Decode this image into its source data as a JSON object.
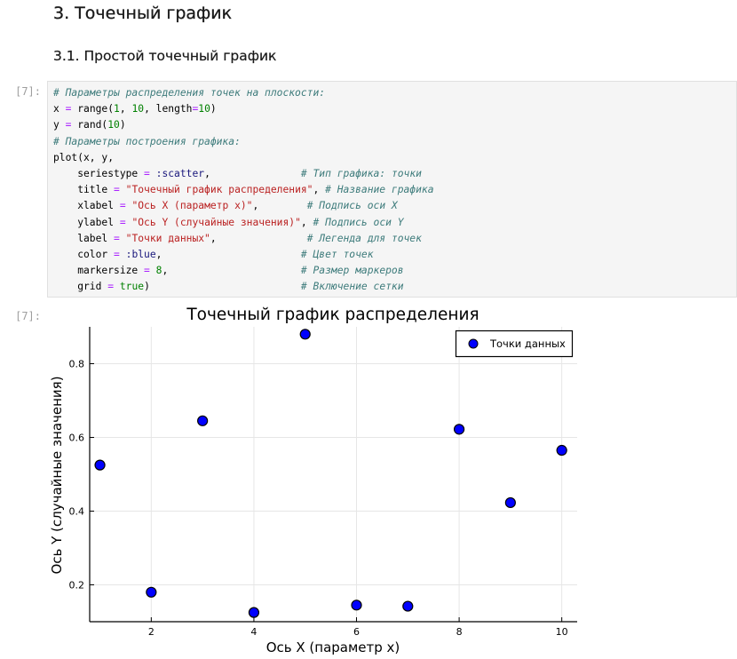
{
  "notebook": {
    "section_heading": "3. Точечный график",
    "subsection_heading": "3.1. Простой точечный график",
    "input_prompt": "[7]:",
    "output_prompt": "[7]:",
    "code_lines": [
      "# Параметры распределения точек на плоскости:",
      "x = range(1, 10, length=10)",
      "y = rand(10)",
      "# Параметры построения графика:",
      "plot(x, y,",
      "    seriestype = :scatter,               # Тип графика: точки",
      "    title = \"Точечный график распределения\", # Название графика",
      "    xlabel = \"Ось X (параметр x)\",        # Подпись оси X",
      "    ylabel = \"Ось Y (случайные значения)\", # Подпись оси Y",
      "    label = \"Точки данных\",               # Легенда для точек",
      "    color = :blue,                       # Цвет точек",
      "    markersize = 8,                      # Размер маркеров",
      "    grid = true)                         # Включение сетки"
    ]
  },
  "chart_data": {
    "type": "scatter",
    "title": "Точечный график распределения",
    "xlabel": "Ось X (параметр x)",
    "ylabel": "Ось Y (случайные значения)",
    "legend": "top-right",
    "grid": true,
    "xlim": [
      0.8,
      10.3
    ],
    "ylim": [
      0.1,
      0.9
    ],
    "x_ticks": [
      2,
      4,
      6,
      8,
      10
    ],
    "y_ticks": [
      0.2,
      0.4,
      0.6,
      0.8
    ],
    "series": [
      {
        "name": "Точки данных",
        "color": "#0000ff",
        "x": [
          1,
          2,
          3,
          4,
          5,
          6,
          7,
          8,
          9,
          10
        ],
        "y": [
          0.525,
          0.18,
          0.645,
          0.125,
          0.88,
          0.145,
          0.142,
          0.622,
          0.423,
          0.565
        ]
      }
    ]
  }
}
